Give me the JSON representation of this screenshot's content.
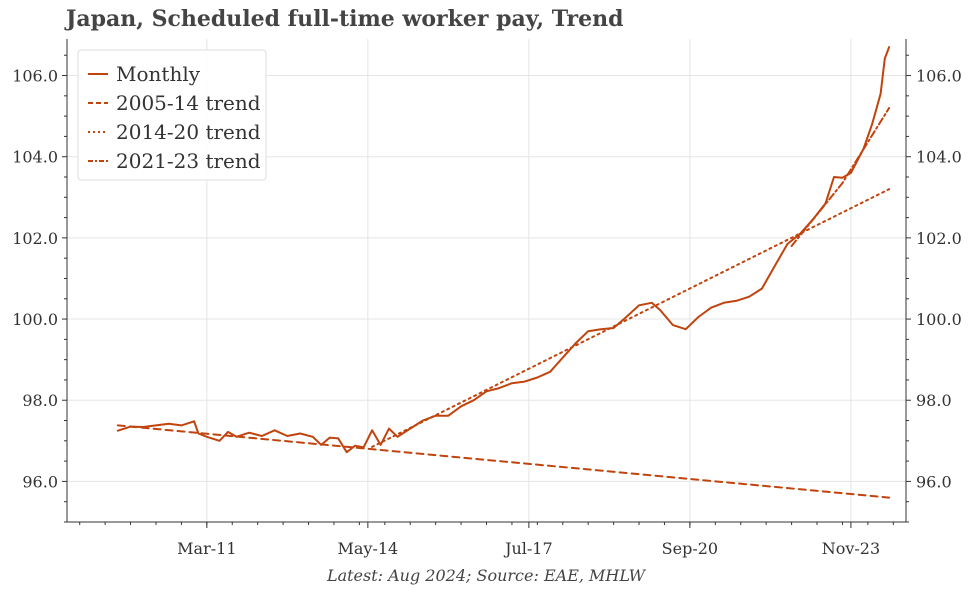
{
  "chart_data": {
    "type": "line",
    "title": "Japan, Scheduled full-time worker pay, Trend",
    "footer": "Latest: Aug 2024; Source: EAE, MHLW",
    "xlabel": "",
    "ylabel": "",
    "ylim": [
      95.0,
      106.9
    ],
    "yticks": [
      "96.0",
      "98.0",
      "100.0",
      "102.0",
      "104.0",
      "106.0"
    ],
    "xticks": [
      "Mar-11",
      "May-14",
      "Jul-17",
      "Sep-20",
      "Nov-23"
    ],
    "grid": true,
    "legend_position": "top-left",
    "colors": {
      "line": "#c1440e",
      "grid": "#e5e5e5",
      "axis": "#333333"
    },
    "series": [
      {
        "name": "Monthly",
        "style": "solid",
        "points": [
          [
            "2009-06",
            97.25
          ],
          [
            "2009-09",
            97.35
          ],
          [
            "2009-12",
            97.34
          ],
          [
            "2010-03",
            97.38
          ],
          [
            "2010-06",
            97.42
          ],
          [
            "2010-09",
            97.38
          ],
          [
            "2010-12",
            97.48
          ],
          [
            "2011-01",
            97.18
          ],
          [
            "2011-03",
            97.1
          ],
          [
            "2011-06",
            97.0
          ],
          [
            "2011-08",
            97.22
          ],
          [
            "2011-10",
            97.1
          ],
          [
            "2012-01",
            97.2
          ],
          [
            "2012-04",
            97.12
          ],
          [
            "2012-07",
            97.26
          ],
          [
            "2012-10",
            97.12
          ],
          [
            "2013-01",
            97.18
          ],
          [
            "2013-04",
            97.1
          ],
          [
            "2013-06",
            96.9
          ],
          [
            "2013-08",
            97.08
          ],
          [
            "2013-10",
            97.06
          ],
          [
            "2013-12",
            96.72
          ],
          [
            "2014-02",
            96.88
          ],
          [
            "2014-04",
            96.84
          ],
          [
            "2014-06",
            97.26
          ],
          [
            "2014-08",
            96.9
          ],
          [
            "2014-10",
            97.3
          ],
          [
            "2014-12",
            97.1
          ],
          [
            "2015-03",
            97.3
          ],
          [
            "2015-06",
            97.5
          ],
          [
            "2015-09",
            97.62
          ],
          [
            "2015-12",
            97.62
          ],
          [
            "2016-03",
            97.85
          ],
          [
            "2016-06",
            98.0
          ],
          [
            "2016-09",
            98.22
          ],
          [
            "2016-12",
            98.3
          ],
          [
            "2017-03",
            98.42
          ],
          [
            "2017-06",
            98.46
          ],
          [
            "2017-09",
            98.56
          ],
          [
            "2017-12",
            98.7
          ],
          [
            "2018-03",
            99.05
          ],
          [
            "2018-06",
            99.4
          ],
          [
            "2018-09",
            99.7
          ],
          [
            "2018-12",
            99.75
          ],
          [
            "2019-03",
            99.78
          ],
          [
            "2019-06",
            100.05
          ],
          [
            "2019-09",
            100.34
          ],
          [
            "2019-12",
            100.4
          ],
          [
            "2020-02",
            100.22
          ],
          [
            "2020-05",
            99.85
          ],
          [
            "2020-08",
            99.75
          ],
          [
            "2020-11",
            100.05
          ],
          [
            "2021-02",
            100.28
          ],
          [
            "2021-05",
            100.4
          ],
          [
            "2021-08",
            100.45
          ],
          [
            "2021-11",
            100.55
          ],
          [
            "2022-02",
            100.75
          ],
          [
            "2022-05",
            101.3
          ],
          [
            "2022-08",
            101.85
          ],
          [
            "2022-11",
            102.1
          ],
          [
            "2023-02",
            102.45
          ],
          [
            "2023-05",
            102.85
          ],
          [
            "2023-07",
            103.5
          ],
          [
            "2023-09",
            103.48
          ],
          [
            "2023-11",
            103.6
          ],
          [
            "2024-02",
            104.2
          ],
          [
            "2024-04",
            104.8
          ],
          [
            "2024-06",
            105.55
          ],
          [
            "2024-07",
            106.42
          ],
          [
            "2024-08",
            106.7
          ]
        ]
      },
      {
        "name": "2005-14 trend",
        "style": "dashed",
        "points": [
          [
            "2009-06",
            97.38
          ],
          [
            "2024-08",
            95.6
          ]
        ]
      },
      {
        "name": "2014-20 trend",
        "style": "dotted",
        "points": [
          [
            "2014-06",
            96.85
          ],
          [
            "2024-08",
            103.2
          ]
        ]
      },
      {
        "name": "2021-23 trend",
        "style": "dashdot",
        "points": [
          [
            "2022-09",
            101.8
          ],
          [
            "2023-09",
            103.35
          ],
          [
            "2024-08",
            105.2
          ]
        ]
      }
    ]
  }
}
